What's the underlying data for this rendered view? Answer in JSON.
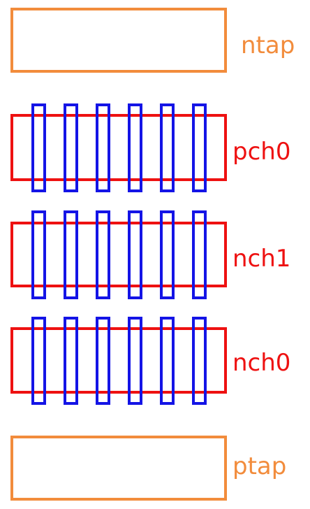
{
  "colors": {
    "tap": "#f28c3c",
    "diffusion": "#ee1111",
    "gate": "#1414e6",
    "background": "#ffffff"
  },
  "blocks": [
    {
      "kind": "tap",
      "label": "ntap",
      "color": "#f28c3c"
    },
    {
      "kind": "transistor",
      "label": "pch0",
      "color": "#ee1111",
      "gates": 6
    },
    {
      "kind": "transistor",
      "label": "nch1",
      "color": "#ee1111",
      "gates": 6
    },
    {
      "kind": "transistor",
      "label": "nch0",
      "color": "#ee1111",
      "gates": 6
    },
    {
      "kind": "tap",
      "label": "ptap",
      "color": "#f28c3c"
    }
  ]
}
